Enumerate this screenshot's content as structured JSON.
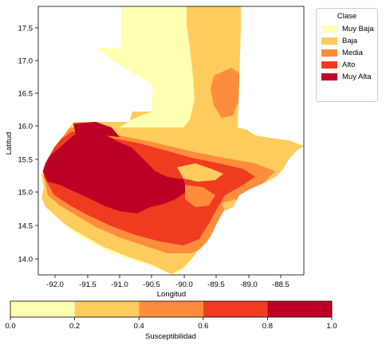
{
  "map": {
    "xlabel": "Longitud",
    "ylabel": "Latitud",
    "x_ticks": [
      "-92.0",
      "-91.5",
      "-91.0",
      "-90.5",
      "-90.0",
      "-89.5",
      "-89.0",
      "-88.5"
    ],
    "y_ticks": [
      "17.5",
      "17.0",
      "16.5",
      "16.0",
      "15.5",
      "15.0",
      "14.5",
      "14.0"
    ]
  },
  "legend": {
    "title": "Clase",
    "items": [
      {
        "label": "Muy Baja",
        "color": "#ffffb2"
      },
      {
        "label": "Baja",
        "color": "#fecc5c"
      },
      {
        "label": "Media",
        "color": "#fd8d3c"
      },
      {
        "label": "Alto",
        "color": "#f03b20"
      },
      {
        "label": "Muy Alta",
        "color": "#bd0026"
      }
    ]
  },
  "colorbar": {
    "label": "Susceptibilidad",
    "ticks": [
      "0.0",
      "0.2",
      "0.4",
      "0.6",
      "0.8",
      "1.0"
    ],
    "colors": [
      "#ffffb2",
      "#fecc5c",
      "#fd8d3c",
      "#f03b20",
      "#bd0026"
    ]
  }
}
